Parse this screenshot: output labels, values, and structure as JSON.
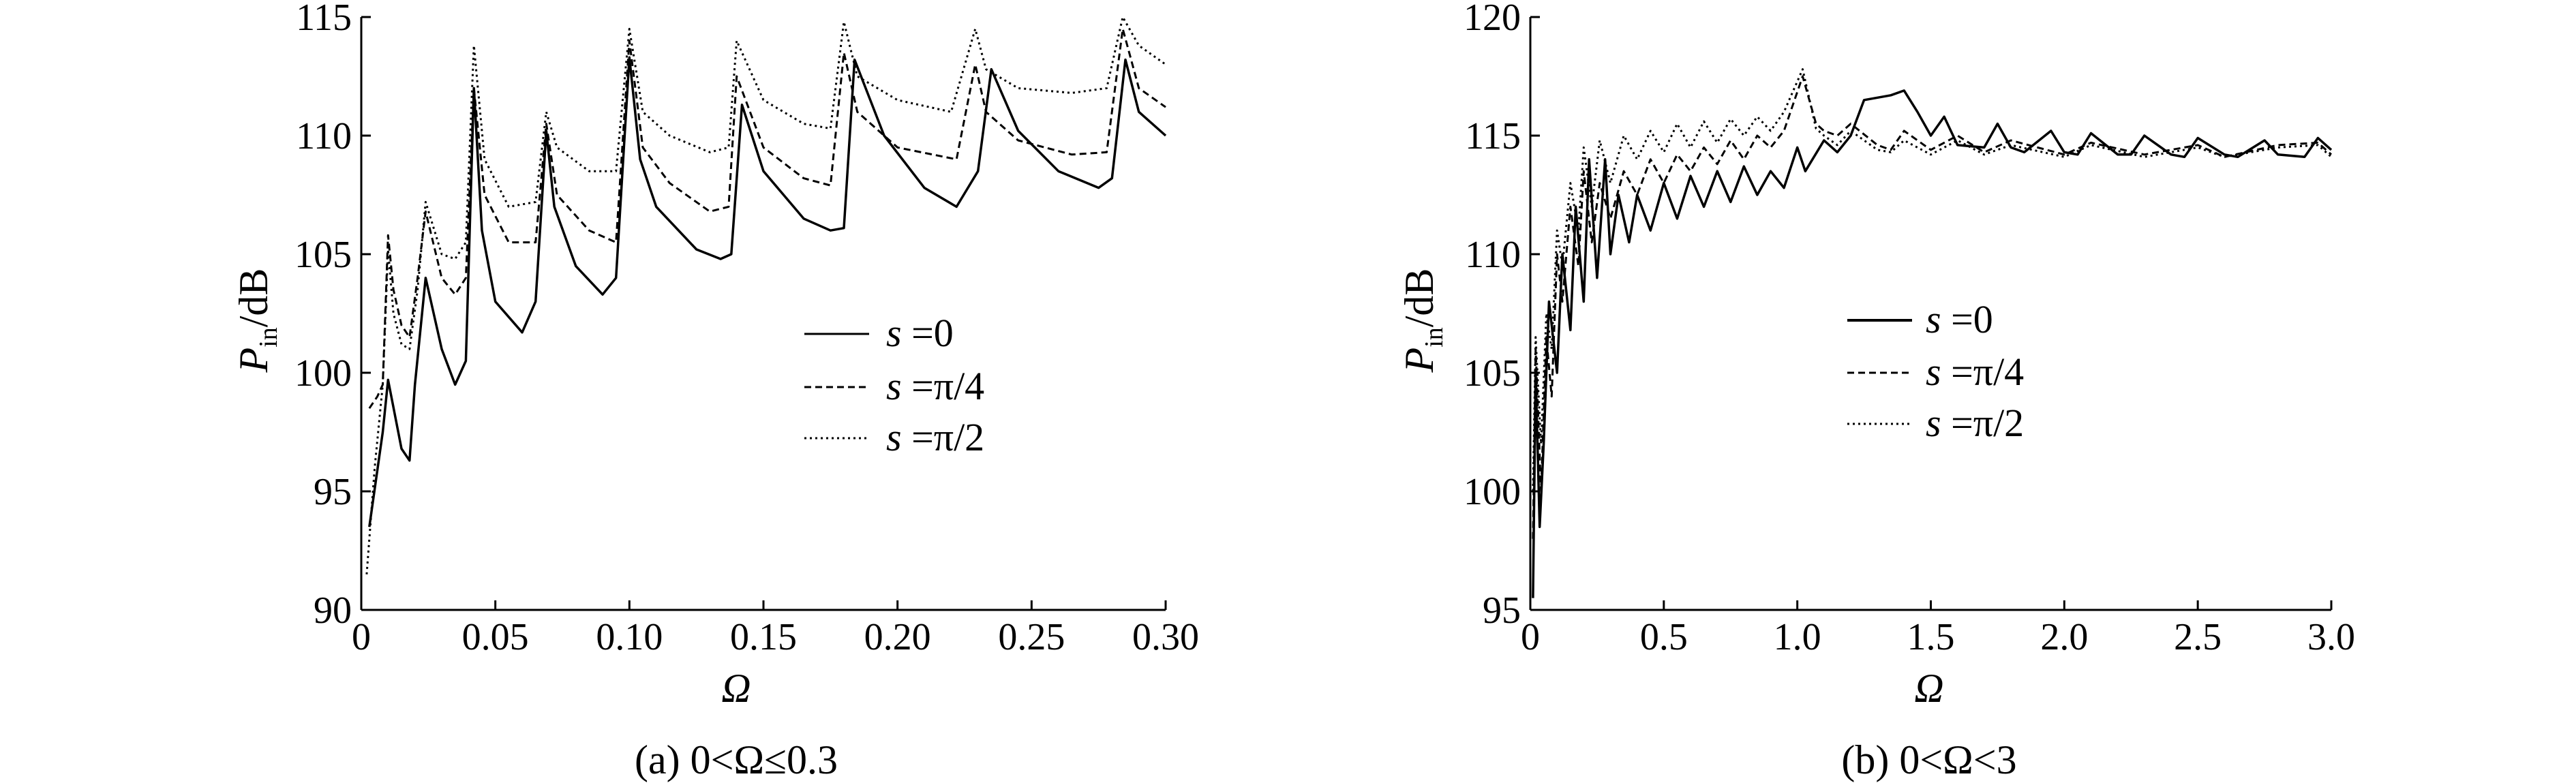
{
  "figure": {
    "caption_a": "(a) 0<Ω≤0.3",
    "caption_b": "(b) 0<Ω<3"
  },
  "chart_data": [
    {
      "id": "a",
      "type": "line",
      "xlabel": "Ω",
      "ylabel_main": "P",
      "ylabel_sub": "in",
      "ylabel_unit": "/dB",
      "xlim": [
        0,
        0.3
      ],
      "ylim": [
        90,
        115
      ],
      "xticks": [
        0,
        0.05,
        0.1,
        0.15,
        0.2,
        0.25,
        0.3
      ],
      "xtick_labels": [
        "0",
        "0.05",
        "0.10",
        "0.15",
        "0.20",
        "0.25",
        "0.30"
      ],
      "yticks": [
        90,
        95,
        100,
        105,
        110,
        115
      ],
      "ytick_labels": [
        "90",
        "95",
        "100",
        "105",
        "110",
        "115"
      ],
      "grid": false,
      "legend_position": "center-right",
      "series": [
        {
          "name": "s =0",
          "legend_var": "s",
          "legend_value": " =0",
          "style": "solid",
          "x": [
            0.003,
            0.008,
            0.01,
            0.015,
            0.018,
            0.02,
            0.024,
            0.03,
            0.035,
            0.039,
            0.042,
            0.045,
            0.05,
            0.06,
            0.065,
            0.069,
            0.072,
            0.08,
            0.09,
            0.095,
            0.1,
            0.104,
            0.11,
            0.125,
            0.134,
            0.138,
            0.142,
            0.15,
            0.165,
            0.175,
            0.18,
            0.184,
            0.195,
            0.21,
            0.222,
            0.23,
            0.235,
            0.245,
            0.26,
            0.275,
            0.28,
            0.285,
            0.29,
            0.3
          ],
          "y": [
            93.5,
            97.5,
            99.7,
            96.8,
            96.3,
            99.5,
            104.0,
            101.0,
            99.5,
            100.5,
            112.0,
            106.0,
            103.0,
            101.7,
            103.0,
            110.2,
            107.0,
            104.5,
            103.3,
            104.0,
            113.3,
            109.0,
            107.0,
            105.2,
            104.8,
            105.0,
            111.3,
            108.5,
            106.5,
            106.0,
            106.1,
            113.2,
            110.0,
            107.8,
            107.0,
            108.5,
            112.8,
            110.2,
            108.5,
            107.8,
            108.2,
            113.2,
            111.0,
            110.0
          ]
        },
        {
          "name": "s =π/4",
          "legend_var": "s",
          "legend_value": " =π/4",
          "style": "dashed",
          "x": [
            0.003,
            0.006,
            0.008,
            0.01,
            0.012,
            0.015,
            0.018,
            0.021,
            0.024,
            0.03,
            0.035,
            0.039,
            0.042,
            0.046,
            0.055,
            0.065,
            0.069,
            0.073,
            0.085,
            0.095,
            0.1,
            0.105,
            0.115,
            0.13,
            0.137,
            0.14,
            0.15,
            0.165,
            0.175,
            0.18,
            0.185,
            0.2,
            0.222,
            0.229,
            0.233,
            0.245,
            0.265,
            0.278,
            0.284,
            0.29,
            0.3
          ],
          "y": [
            98.5,
            99.0,
            99.5,
            105.8,
            103.5,
            102.0,
            101.5,
            104.0,
            106.8,
            104.0,
            103.3,
            104.0,
            112.0,
            107.5,
            105.5,
            105.5,
            110.5,
            107.5,
            106.0,
            105.5,
            114.0,
            109.5,
            108.0,
            106.8,
            107.0,
            112.5,
            109.5,
            108.2,
            107.9,
            113.5,
            111.0,
            109.5,
            109.0,
            113.0,
            111.0,
            109.8,
            109.2,
            109.3,
            114.5,
            112.0,
            111.2
          ]
        },
        {
          "name": "s =π/2",
          "legend_var": "s",
          "legend_value": " =π/2",
          "style": "dotted",
          "x": [
            0.002,
            0.005,
            0.008,
            0.01,
            0.012,
            0.015,
            0.018,
            0.021,
            0.024,
            0.03,
            0.035,
            0.039,
            0.042,
            0.046,
            0.055,
            0.065,
            0.069,
            0.073,
            0.085,
            0.095,
            0.1,
            0.105,
            0.115,
            0.13,
            0.137,
            0.14,
            0.15,
            0.165,
            0.175,
            0.18,
            0.185,
            0.2,
            0.22,
            0.229,
            0.233,
            0.245,
            0.265,
            0.278,
            0.284,
            0.29,
            0.3
          ],
          "y": [
            91.5,
            96.0,
            99.5,
            105.2,
            102.5,
            101.2,
            101.0,
            103.5,
            107.2,
            105.0,
            104.8,
            105.5,
            113.8,
            109.0,
            107.0,
            107.2,
            111.0,
            109.5,
            108.5,
            108.5,
            114.5,
            111.0,
            110.0,
            109.3,
            109.5,
            114.0,
            111.5,
            110.5,
            110.3,
            114.8,
            112.5,
            111.5,
            111.0,
            114.5,
            112.8,
            112.0,
            111.8,
            112.0,
            115.0,
            113.8,
            113.0
          ]
        }
      ]
    },
    {
      "id": "b",
      "type": "line",
      "xlabel": "Ω",
      "ylabel_main": "P",
      "ylabel_sub": "in",
      "ylabel_unit": "/dB",
      "xlim": [
        0,
        3.0
      ],
      "ylim": [
        95,
        120
      ],
      "xticks": [
        0,
        0.5,
        1.0,
        1.5,
        2.0,
        2.5,
        3.0
      ],
      "xtick_labels": [
        "0",
        "0.5",
        "1.0",
        "1.5",
        "2.0",
        "2.5",
        "3.0"
      ],
      "yticks": [
        95,
        100,
        105,
        110,
        115,
        120
      ],
      "ytick_labels": [
        "95",
        "100",
        "105",
        "110",
        "115",
        "120"
      ],
      "grid": false,
      "legend_position": "center-right",
      "series": [
        {
          "name": "s =0",
          "legend_var": "s",
          "legend_value": " =0",
          "style": "solid",
          "x": [
            0.01,
            0.02,
            0.035,
            0.05,
            0.07,
            0.1,
            0.12,
            0.15,
            0.17,
            0.2,
            0.22,
            0.25,
            0.28,
            0.3,
            0.33,
            0.37,
            0.4,
            0.45,
            0.5,
            0.55,
            0.6,
            0.65,
            0.7,
            0.75,
            0.8,
            0.85,
            0.9,
            0.95,
            1.0,
            1.03,
            1.1,
            1.15,
            1.2,
            1.25,
            1.3,
            1.35,
            1.4,
            1.45,
            1.5,
            1.55,
            1.6,
            1.7,
            1.75,
            1.8,
            1.85,
            1.95,
            2.0,
            2.05,
            2.1,
            2.2,
            2.25,
            2.3,
            2.4,
            2.45,
            2.5,
            2.6,
            2.65,
            2.75,
            2.8,
            2.9,
            2.95,
            3.0
          ],
          "y": [
            95.5,
            105.0,
            98.5,
            102.0,
            108.0,
            105.0,
            110.0,
            106.8,
            112.0,
            108.0,
            114.0,
            109.0,
            114.0,
            110.0,
            112.5,
            110.5,
            112.5,
            111.0,
            113.0,
            111.5,
            113.3,
            112.0,
            113.5,
            112.2,
            113.7,
            112.5,
            113.5,
            112.8,
            114.5,
            113.5,
            114.8,
            114.3,
            115.0,
            116.5,
            116.6,
            116.7,
            116.9,
            116.0,
            115.0,
            115.8,
            114.6,
            114.5,
            115.5,
            114.5,
            114.3,
            115.2,
            114.3,
            114.2,
            115.1,
            114.2,
            114.2,
            115.0,
            114.2,
            114.1,
            114.9,
            114.2,
            114.1,
            114.8,
            114.2,
            114.1,
            114.9,
            114.4
          ]
        },
        {
          "name": "s =π/4",
          "legend_var": "s",
          "legend_value": " =π/4",
          "style": "dashed",
          "x": [
            0.01,
            0.02,
            0.04,
            0.06,
            0.08,
            0.1,
            0.12,
            0.15,
            0.18,
            0.2,
            0.23,
            0.26,
            0.3,
            0.35,
            0.4,
            0.45,
            0.5,
            0.55,
            0.6,
            0.65,
            0.7,
            0.75,
            0.8,
            0.85,
            0.9,
            0.95,
            1.02,
            1.07,
            1.1,
            1.15,
            1.2,
            1.3,
            1.35,
            1.4,
            1.5,
            1.6,
            1.7,
            1.8,
            2.0,
            2.1,
            2.3,
            2.5,
            2.6,
            2.8,
            2.95,
            3.0
          ],
          "y": [
            98.0,
            106.0,
            100.0,
            106.5,
            104.0,
            110.0,
            108.0,
            112.0,
            109.5,
            113.5,
            110.5,
            113.0,
            111.5,
            113.5,
            112.5,
            114.0,
            113.0,
            114.2,
            113.5,
            114.5,
            113.8,
            114.8,
            114.0,
            115.0,
            114.5,
            115.2,
            117.5,
            115.5,
            115.2,
            115.0,
            115.5,
            114.6,
            114.4,
            115.2,
            114.4,
            115.0,
            114.3,
            114.8,
            114.2,
            114.7,
            114.2,
            114.6,
            114.1,
            114.6,
            114.7,
            114.2
          ]
        },
        {
          "name": "s =π/2",
          "legend_var": "s",
          "legend_value": " =π/2",
          "style": "dotted",
          "x": [
            0.01,
            0.02,
            0.04,
            0.06,
            0.08,
            0.1,
            0.12,
            0.15,
            0.18,
            0.2,
            0.23,
            0.26,
            0.3,
            0.35,
            0.4,
            0.45,
            0.5,
            0.55,
            0.6,
            0.65,
            0.7,
            0.75,
            0.8,
            0.85,
            0.9,
            0.95,
            1.02,
            1.07,
            1.1,
            1.15,
            1.2,
            1.3,
            1.35,
            1.4,
            1.5,
            1.6,
            1.7,
            1.8,
            2.0,
            2.1,
            2.3,
            2.5,
            2.6,
            2.8,
            2.95,
            3.0
          ],
          "y": [
            100.0,
            106.5,
            102.0,
            107.5,
            106.0,
            111.0,
            109.5,
            113.0,
            111.0,
            114.5,
            112.0,
            114.8,
            113.0,
            115.0,
            114.0,
            115.2,
            114.3,
            115.5,
            114.5,
            115.6,
            114.7,
            115.7,
            115.0,
            115.8,
            115.2,
            116.0,
            117.8,
            115.3,
            115.0,
            114.6,
            115.2,
            114.4,
            114.3,
            114.8,
            114.2,
            114.8,
            114.2,
            114.6,
            114.1,
            114.6,
            114.1,
            114.5,
            114.1,
            114.5,
            114.6,
            114.1
          ]
        }
      ]
    }
  ]
}
